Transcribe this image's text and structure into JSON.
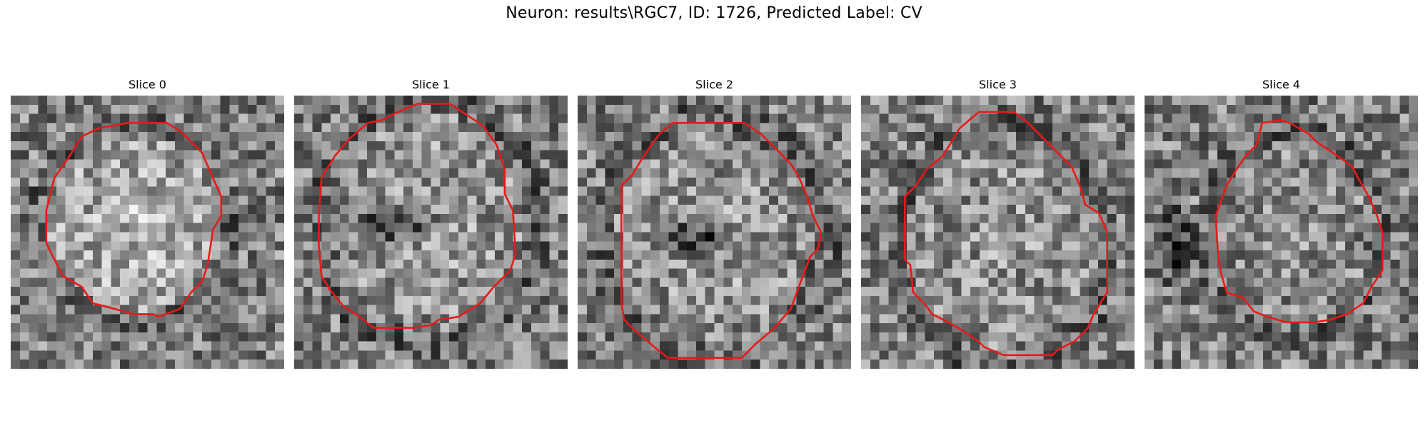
{
  "figure": {
    "suptitle": "Neuron: results\\RGC7, ID: 1726, Predicted Label: CV"
  },
  "panels": [
    {
      "title": "Slice 0",
      "contour_color": "#e81919"
    },
    {
      "title": "Slice 1",
      "contour_color": "#e81919"
    },
    {
      "title": "Slice 2",
      "contour_color": "#e81919"
    },
    {
      "title": "Slice 3",
      "contour_color": "#e81919"
    },
    {
      "title": "Slice 4",
      "contour_color": "#e81919"
    }
  ],
  "colors": {
    "contour": "#e81919",
    "colormap": "gray"
  }
}
